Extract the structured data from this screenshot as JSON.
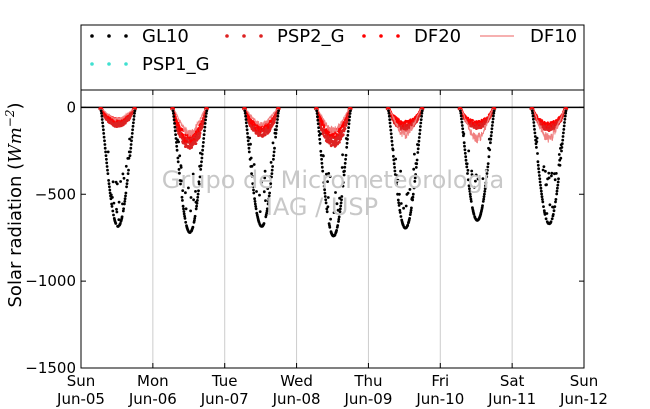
{
  "chart_data": {
    "type": "scatter",
    "title": "",
    "ylabel": "Solar radiation (Wm⁻²)",
    "ylabel_text": "Solar radiation (",
    "ylabel_unit": "Wm",
    "ylabel_exp": "−2",
    "ylabel_close": ")",
    "ylim": [
      -1500,
      100
    ],
    "yticks": [
      0,
      -500,
      -1000,
      -1500
    ],
    "ytick_labels": [
      "0",
      "−500",
      "−1000",
      "−1500"
    ],
    "xlim": [
      0,
      7
    ],
    "xtick_days": [
      "Sun",
      "Mon",
      "Tue",
      "Wed",
      "Thu",
      "Fri",
      "Sat",
      "Sun"
    ],
    "xtick_dates": [
      "Jun-05",
      "Jun-06",
      "Jun-07",
      "Jun-08",
      "Jun-09",
      "Jun-10",
      "Jun-11",
      "Jun-12"
    ],
    "grid": "vertical",
    "legend_position": "top",
    "watermark": [
      "Grupo de Micrometeorologia",
      "IAG / USP"
    ],
    "daily_peaks": {
      "days": [
        "Jun-05",
        "Jun-06",
        "Jun-07",
        "Jun-08",
        "Jun-09",
        "Jun-10",
        "Jun-11"
      ],
      "GL10": [
        -665,
        -700,
        -665,
        -720,
        -675,
        -630,
        -650
      ],
      "PSP2_G": [
        -90,
        -200,
        -140,
        -190,
        -110,
        -100,
        -110
      ],
      "DF20": [
        -70,
        -180,
        -120,
        -150,
        -90,
        -90,
        -100
      ],
      "DF10": [
        -65,
        -160,
        -100,
        -140,
        -170,
        -195,
        -195
      ],
      "PSP1_G": [
        0,
        0,
        0,
        0,
        0,
        0,
        0
      ]
    },
    "series": [
      {
        "name": "GL10",
        "color": "#000000",
        "style": "dots"
      },
      {
        "name": "PSP2_G",
        "color": "#dd2222",
        "style": "dots"
      },
      {
        "name": "DF20",
        "color": "#ff0000",
        "style": "dots"
      },
      {
        "name": "DF10",
        "color": "#f08080",
        "style": "line"
      },
      {
        "name": "PSP1_G",
        "color": "#40e0d0",
        "style": "dots"
      }
    ]
  }
}
